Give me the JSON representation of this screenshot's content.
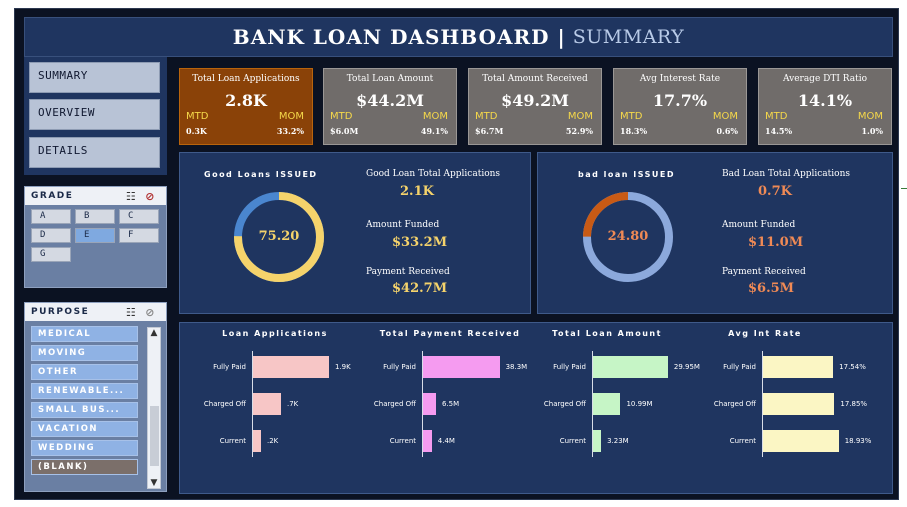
{
  "header": {
    "title": "BANK LOAN DASHBOARD",
    "separator": "|",
    "subtitle": "SUMMARY"
  },
  "nav": {
    "items": [
      {
        "label": "SUMMARY"
      },
      {
        "label": "OVERVIEW"
      },
      {
        "label": "DETAILS"
      }
    ]
  },
  "grade_slicer": {
    "title": "GRADE",
    "items": [
      {
        "label": "A"
      },
      {
        "label": "B"
      },
      {
        "label": "C"
      },
      {
        "label": "D"
      },
      {
        "label": "E",
        "selected": true
      },
      {
        "label": "F"
      },
      {
        "label": "G"
      }
    ]
  },
  "purpose_slicer": {
    "title": "PURPOSE",
    "items": [
      {
        "label": "MEDICAL"
      },
      {
        "label": "MOVING"
      },
      {
        "label": "OTHER"
      },
      {
        "label": "RENEWABLE..."
      },
      {
        "label": "SMALL BUS..."
      },
      {
        "label": "VACATION"
      },
      {
        "label": "WEDDING"
      },
      {
        "label": "(BLANK)"
      }
    ]
  },
  "kpis": [
    {
      "title": "Total Loan Applications",
      "value": "2.8K",
      "mtd_label": "MTD",
      "mom_label": "MOM",
      "mtd": "0.3K",
      "mom": "33.2%",
      "highlighted": true
    },
    {
      "title": "Total Loan Amount",
      "value": "$44.2M",
      "mtd_label": "MTD",
      "mom_label": "MOM",
      "mtd": "$6.0M",
      "mom": "49.1%"
    },
    {
      "title": "Total Amount Received",
      "value": "$49.2M",
      "mtd_label": "MTD",
      "mom_label": "MOM",
      "mtd": "$6.7M",
      "mom": "52.9%"
    },
    {
      "title": "Avg Interest Rate",
      "value": "17.7%",
      "mtd_label": "MTD",
      "mom_label": "MOM",
      "mtd": "18.3%",
      "mom": "0.6%"
    },
    {
      "title": "Average DTI Ratio",
      "value": "14.1%",
      "mtd_label": "MTD",
      "mom_label": "MOM",
      "mtd": "14.5%",
      "mom": "1.0%"
    }
  ],
  "good_loans": {
    "title": "Good Loans ISSUED",
    "percent": 75.2,
    "percent_label": "75.20",
    "applications_label": "Good Loan Total Applications",
    "applications": "2.1K",
    "funded_label": "Amount Funded",
    "funded": "$33.2M",
    "received_label": "Payment Received",
    "received": "$42.7M",
    "ring_color": "#f5d36b",
    "remainder_color": "#4a86cf",
    "value_color": "#f5d36b"
  },
  "bad_loans": {
    "title": "bad loan ISSUED",
    "percent": 24.8,
    "percent_label": "24.80",
    "applications_label": "Bad Loan Total Applications",
    "applications": "0.7K",
    "funded_label": "Amount Funded",
    "funded": "$11.0M",
    "received_label": "Payment Received",
    "received": "$6.5M",
    "ring_color": "#c85a15",
    "remainder_color": "#8ca9dc",
    "value_color": "#f08a55"
  },
  "chart_data": [
    {
      "type": "bar",
      "title": "Loan Applications",
      "categories": [
        "Fully Paid",
        "Charged Off",
        "Current"
      ],
      "values": [
        1.9,
        0.7,
        0.2
      ],
      "value_labels": [
        "1.9K",
        ".7K",
        ".2K"
      ],
      "color": "#f7c6c6",
      "xlim": [
        0,
        2
      ]
    },
    {
      "type": "bar",
      "title": "Total Payment Received",
      "categories": [
        "Fully Paid",
        "Charged Off",
        "Current"
      ],
      "values": [
        38.3,
        6.5,
        4.4
      ],
      "value_labels": [
        "38.3M",
        "6.5M",
        "4.4M"
      ],
      "color": "#f59bf0",
      "xlim": [
        0,
        40
      ]
    },
    {
      "type": "bar",
      "title": "Total Loan Amount",
      "categories": [
        "Fully Paid",
        "Charged Off",
        "Current"
      ],
      "values": [
        29.95,
        10.99,
        3.23
      ],
      "value_labels": [
        "29.95M",
        "10.99M",
        "3.23M"
      ],
      "color": "#c6f5c6",
      "xlim": [
        0,
        32
      ]
    },
    {
      "type": "bar",
      "title": "Avg Int Rate",
      "categories": [
        "Fully Paid",
        "Charged Off",
        "Current"
      ],
      "values": [
        17.54,
        17.85,
        18.93
      ],
      "value_labels": [
        "17.54%",
        "17.85%",
        "18.93%"
      ],
      "color": "#fbf6c4",
      "xlim": [
        0,
        20
      ]
    }
  ]
}
